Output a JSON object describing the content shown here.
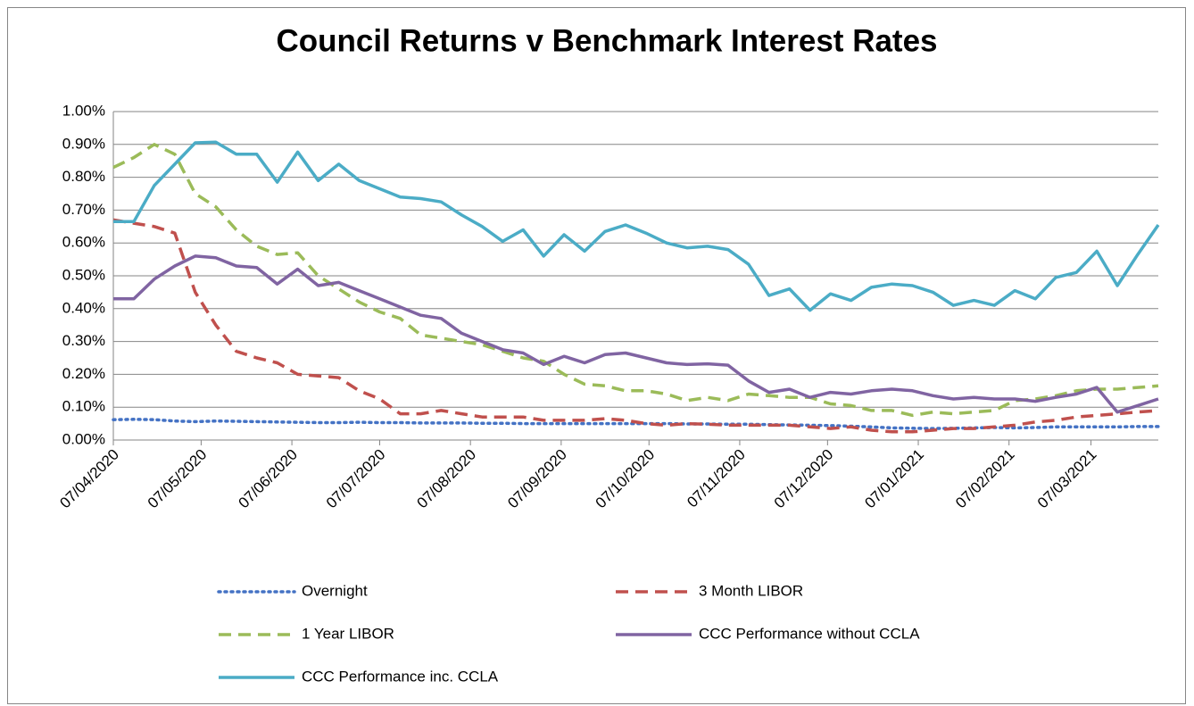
{
  "chart_data": {
    "type": "line",
    "title": "Council Returns v Benchmark Interest Rates",
    "x": [
      "07/04/2020",
      "14/04/2020",
      "21/04/2020",
      "28/04/2020",
      "05/05/2020",
      "12/05/2020",
      "19/05/2020",
      "26/05/2020",
      "02/06/2020",
      "09/06/2020",
      "16/06/2020",
      "23/06/2020",
      "30/06/2020",
      "07/07/2020",
      "14/07/2020",
      "21/07/2020",
      "28/07/2020",
      "04/08/2020",
      "11/08/2020",
      "18/08/2020",
      "25/08/2020",
      "01/09/2020",
      "08/09/2020",
      "15/09/2020",
      "22/09/2020",
      "29/09/2020",
      "06/10/2020",
      "13/10/2020",
      "20/10/2020",
      "27/10/2020",
      "03/11/2020",
      "10/11/2020",
      "17/11/2020",
      "24/11/2020",
      "01/12/2020",
      "08/12/2020",
      "15/12/2020",
      "22/12/2020",
      "29/12/2020",
      "05/01/2021",
      "12/01/2021",
      "19/01/2021",
      "26/01/2021",
      "02/02/2021",
      "09/02/2021",
      "16/02/2021",
      "23/02/2021",
      "02/03/2021",
      "09/03/2021",
      "16/03/2021",
      "23/03/2021",
      "30/03/2021"
    ],
    "xlim": [
      "07/04/2020",
      "30/03/2021"
    ],
    "xticks": [
      "07/04/2020",
      "07/05/2020",
      "07/06/2020",
      "07/07/2020",
      "07/08/2020",
      "07/09/2020",
      "07/10/2020",
      "07/11/2020",
      "07/12/2020",
      "07/01/2021",
      "07/02/2021",
      "07/03/2021"
    ],
    "ylim": [
      0,
      1
    ],
    "yticks": [
      {
        "value": 0,
        "label": "0.00%"
      },
      {
        "value": 0.1,
        "label": "0.10%"
      },
      {
        "value": 0.2,
        "label": "0.20%"
      },
      {
        "value": 0.3,
        "label": "0.30%"
      },
      {
        "value": 0.4,
        "label": "0.40%"
      },
      {
        "value": 0.5,
        "label": "0.50%"
      },
      {
        "value": 0.6,
        "label": "0.60%"
      },
      {
        "value": 0.7,
        "label": "0.70%"
      },
      {
        "value": 0.8,
        "label": "0.80%"
      },
      {
        "value": 0.9,
        "label": "0.90%"
      },
      {
        "value": 1,
        "label": "1.00%"
      }
    ],
    "grid": true,
    "legend": "bottom",
    "series": [
      {
        "name": "Overnight",
        "color": "#4472c4",
        "style": "dotted",
        "values": [
          0.062,
          0.063,
          0.062,
          0.058,
          0.056,
          0.058,
          0.057,
          0.056,
          0.055,
          0.054,
          0.053,
          0.053,
          0.054,
          0.053,
          0.053,
          0.052,
          0.052,
          0.052,
          0.051,
          0.051,
          0.05,
          0.05,
          0.05,
          0.05,
          0.05,
          0.05,
          0.05,
          0.05,
          0.049,
          0.049,
          0.048,
          0.048,
          0.047,
          0.046,
          0.045,
          0.044,
          0.042,
          0.04,
          0.037,
          0.036,
          0.035,
          0.036,
          0.037,
          0.038,
          0.037,
          0.038,
          0.04,
          0.04,
          0.04,
          0.04,
          0.041,
          0.041
        ]
      },
      {
        "name": "3 Month LIBOR",
        "color": "#c0504d",
        "style": "dashed",
        "values": [
          0.67,
          0.66,
          0.65,
          0.63,
          0.45,
          0.35,
          0.27,
          0.25,
          0.235,
          0.2,
          0.195,
          0.19,
          0.15,
          0.125,
          0.08,
          0.08,
          0.09,
          0.08,
          0.07,
          0.07,
          0.07,
          0.06,
          0.06,
          0.06,
          0.065,
          0.06,
          0.05,
          0.045,
          0.05,
          0.048,
          0.045,
          0.045,
          0.045,
          0.045,
          0.04,
          0.035,
          0.04,
          0.03,
          0.025,
          0.025,
          0.03,
          0.035,
          0.035,
          0.04,
          0.045,
          0.055,
          0.06,
          0.07,
          0.075,
          0.08,
          0.085,
          0.09
        ]
      },
      {
        "name": "1 Year LIBOR",
        "color": "#9bbb59",
        "style": "dashed",
        "values": [
          0.83,
          0.86,
          0.9,
          0.87,
          0.75,
          0.71,
          0.64,
          0.59,
          0.565,
          0.57,
          0.5,
          0.46,
          0.42,
          0.39,
          0.37,
          0.32,
          0.31,
          0.3,
          0.29,
          0.27,
          0.25,
          0.24,
          0.2,
          0.17,
          0.165,
          0.15,
          0.15,
          0.14,
          0.12,
          0.13,
          0.12,
          0.14,
          0.135,
          0.13,
          0.13,
          0.11,
          0.105,
          0.09,
          0.09,
          0.075,
          0.085,
          0.08,
          0.085,
          0.09,
          0.12,
          0.125,
          0.135,
          0.15,
          0.155,
          0.155,
          0.16,
          0.165
        ]
      },
      {
        "name": "CCC Performance without CCLA",
        "color": "#8064a2",
        "style": "solid",
        "values": [
          0.43,
          0.43,
          0.49,
          0.53,
          0.56,
          0.555,
          0.53,
          0.525,
          0.475,
          0.52,
          0.47,
          0.48,
          0.455,
          0.43,
          0.405,
          0.38,
          0.37,
          0.325,
          0.3,
          0.275,
          0.265,
          0.23,
          0.255,
          0.235,
          0.26,
          0.265,
          0.25,
          0.235,
          0.23,
          0.232,
          0.228,
          0.18,
          0.145,
          0.155,
          0.13,
          0.145,
          0.14,
          0.15,
          0.155,
          0.15,
          0.135,
          0.125,
          0.13,
          0.125,
          0.125,
          0.118,
          0.13,
          0.14,
          0.16,
          0.085,
          0.105,
          0.125
        ]
      },
      {
        "name": "CCC Performance inc. CCLA",
        "color": "#4bacc6",
        "style": "solid",
        "values": [
          0.665,
          0.665,
          0.775,
          0.84,
          0.905,
          0.907,
          0.87,
          0.87,
          0.785,
          0.877,
          0.79,
          0.84,
          0.79,
          0.765,
          0.74,
          0.735,
          0.725,
          0.685,
          0.65,
          0.605,
          0.64,
          0.56,
          0.625,
          0.575,
          0.635,
          0.655,
          0.63,
          0.6,
          0.585,
          0.59,
          0.58,
          0.535,
          0.44,
          0.46,
          0.395,
          0.445,
          0.425,
          0.465,
          0.475,
          0.47,
          0.45,
          0.41,
          0.425,
          0.41,
          0.455,
          0.43,
          0.495,
          0.51,
          0.575,
          0.47,
          0.565,
          0.655
        ]
      }
    ]
  }
}
